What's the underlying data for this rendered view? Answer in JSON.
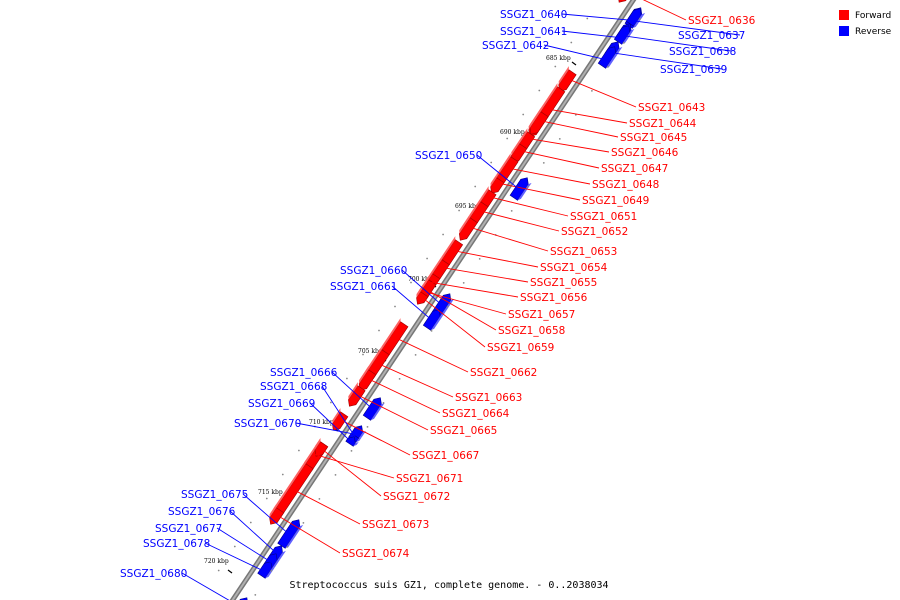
{
  "legend": {
    "forward_label": "Forward",
    "reverse_label": "Reverse",
    "forward_color": "#ff0000",
    "reverse_color": "#0000ff"
  },
  "caption": "Streptococcus suis GZ1, complete genome. - 0..2038034",
  "kbp_markers": [
    "685 kbp",
    "690 kbp",
    "695 kbp",
    "700 kbp",
    "705 kbp",
    "710 kbp",
    "715 kbp",
    "720 kbp"
  ],
  "genes": [
    {
      "id": "SSGZ1_0636",
      "strand": "forward"
    },
    {
      "id": "SSGZ1_0637",
      "strand": "reverse"
    },
    {
      "id": "SSGZ1_0638",
      "strand": "reverse"
    },
    {
      "id": "SSGZ1_0639",
      "strand": "reverse"
    },
    {
      "id": "SSGZ1_0640",
      "strand": "reverse"
    },
    {
      "id": "SSGZ1_0641",
      "strand": "reverse"
    },
    {
      "id": "SSGZ1_0642",
      "strand": "reverse"
    },
    {
      "id": "SSGZ1_0643",
      "strand": "forward"
    },
    {
      "id": "SSGZ1_0644",
      "strand": "forward"
    },
    {
      "id": "SSGZ1_0645",
      "strand": "forward"
    },
    {
      "id": "SSGZ1_0646",
      "strand": "forward"
    },
    {
      "id": "SSGZ1_0647",
      "strand": "forward"
    },
    {
      "id": "SSGZ1_0648",
      "strand": "forward"
    },
    {
      "id": "SSGZ1_0649",
      "strand": "forward"
    },
    {
      "id": "SSGZ1_0650",
      "strand": "reverse"
    },
    {
      "id": "SSGZ1_0651",
      "strand": "forward"
    },
    {
      "id": "SSGZ1_0652",
      "strand": "forward"
    },
    {
      "id": "SSGZ1_0653",
      "strand": "forward"
    },
    {
      "id": "SSGZ1_0654",
      "strand": "forward"
    },
    {
      "id": "SSGZ1_0655",
      "strand": "forward"
    },
    {
      "id": "SSGZ1_0656",
      "strand": "forward"
    },
    {
      "id": "SSGZ1_0657",
      "strand": "forward"
    },
    {
      "id": "SSGZ1_0658",
      "strand": "forward"
    },
    {
      "id": "SSGZ1_0659",
      "strand": "forward"
    },
    {
      "id": "SSGZ1_0660",
      "strand": "reverse"
    },
    {
      "id": "SSGZ1_0661",
      "strand": "reverse"
    },
    {
      "id": "SSGZ1_0662",
      "strand": "forward"
    },
    {
      "id": "SSGZ1_0663",
      "strand": "forward"
    },
    {
      "id": "SSGZ1_0664",
      "strand": "forward"
    },
    {
      "id": "SSGZ1_0665",
      "strand": "forward"
    },
    {
      "id": "SSGZ1_0666",
      "strand": "reverse"
    },
    {
      "id": "SSGZ1_0667",
      "strand": "forward"
    },
    {
      "id": "SSGZ1_0668",
      "strand": "reverse"
    },
    {
      "id": "SSGZ1_0669",
      "strand": "reverse"
    },
    {
      "id": "SSGZ1_0670",
      "strand": "reverse"
    },
    {
      "id": "SSGZ1_0671",
      "strand": "forward"
    },
    {
      "id": "SSGZ1_0672",
      "strand": "forward"
    },
    {
      "id": "SSGZ1_0673",
      "strand": "forward"
    },
    {
      "id": "SSGZ1_0674",
      "strand": "forward"
    },
    {
      "id": "SSGZ1_0675",
      "strand": "reverse"
    },
    {
      "id": "SSGZ1_0676",
      "strand": "reverse"
    },
    {
      "id": "SSGZ1_0677",
      "strand": "reverse"
    },
    {
      "id": "SSGZ1_0678",
      "strand": "reverse"
    },
    {
      "id": "SSGZ1_0680",
      "strand": "reverse"
    }
  ]
}
